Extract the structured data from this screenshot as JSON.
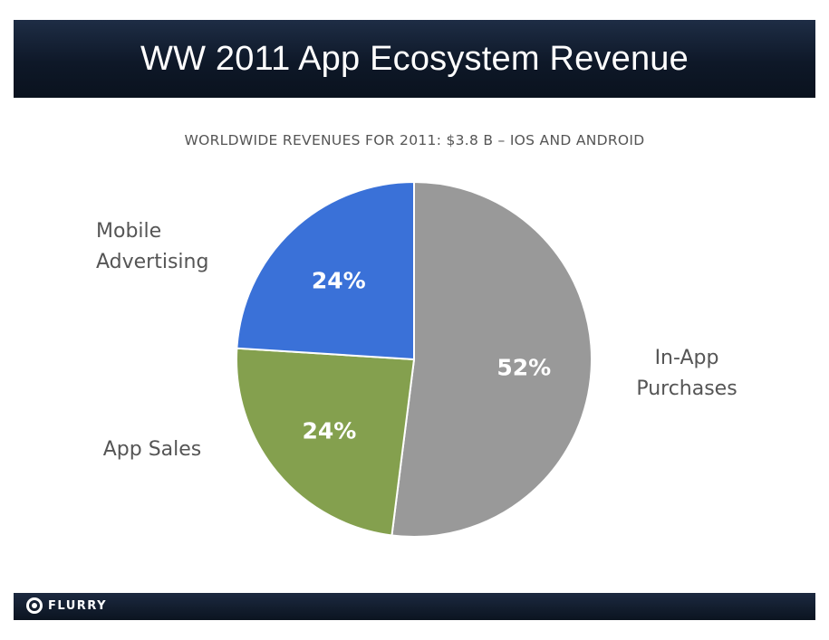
{
  "header": {
    "title": "WW 2011 App Ecosystem Revenue"
  },
  "footer": {
    "logo_text": "FLURRY"
  },
  "chart_data": {
    "type": "pie",
    "title": "WORLDWIDE REVENUES FOR 2011: $3.8 B – IOS AND ANDROID",
    "slices": [
      {
        "label": "In-App Purchases",
        "label_lines": [
          "In-App",
          "Purchases"
        ],
        "value": 52,
        "value_label": "52%",
        "color": "#999999"
      },
      {
        "label": "App Sales",
        "label_lines": [
          "App Sales"
        ],
        "value": 24,
        "value_label": "24%",
        "color": "#84a04e"
      },
      {
        "label": "Mobile Advertising",
        "label_lines": [
          "Mobile",
          "Advertising"
        ],
        "value": 24,
        "value_label": "24%",
        "color": "#3a71d8"
      }
    ],
    "start_angle_deg": 0,
    "direction": "clockwise"
  }
}
